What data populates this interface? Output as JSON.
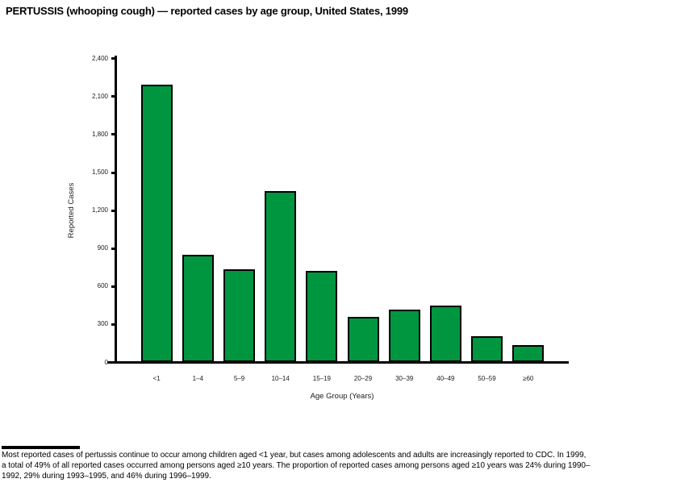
{
  "page": {
    "footnote_lines": [
      "Most reported cases of pertussis continue to occur among children aged <1 year, but cases among adolescents and adults are increasingly reported to CDC. In 1999,",
      "a total of 49% of all reported cases occurred among persons aged ≥10 years. The proportion of reported cases among persons aged ≥10 years was 24% during 1990–",
      "1992, 29% during 1993–1995, and 46% during 1996–1999."
    ]
  },
  "chart_data": {
    "type": "bar",
    "title": "PERTUSSIS (whooping cough) — reported cases by age group, United States, 1999",
    "categories": [
      "<1",
      "1–4",
      "5–9",
      "10–14",
      "15–19",
      "20–29",
      "30–39",
      "40–49",
      "50–59",
      "≥60"
    ],
    "values": [
      2190,
      845,
      735,
      1350,
      720,
      355,
      415,
      445,
      205,
      135
    ],
    "xlabel": "Age Group (Years)",
    "ylabel": "Reported Cases",
    "ylim": [
      0,
      2400
    ],
    "ytick_step": 300,
    "ytick_labels": [
      "0",
      "300",
      "600",
      "900",
      "1,200",
      "1,500",
      "1,800",
      "2,100",
      "2,400"
    ],
    "bar_color": "#009640",
    "bar_border_color": "#000000",
    "grid": false,
    "legend": "none"
  }
}
